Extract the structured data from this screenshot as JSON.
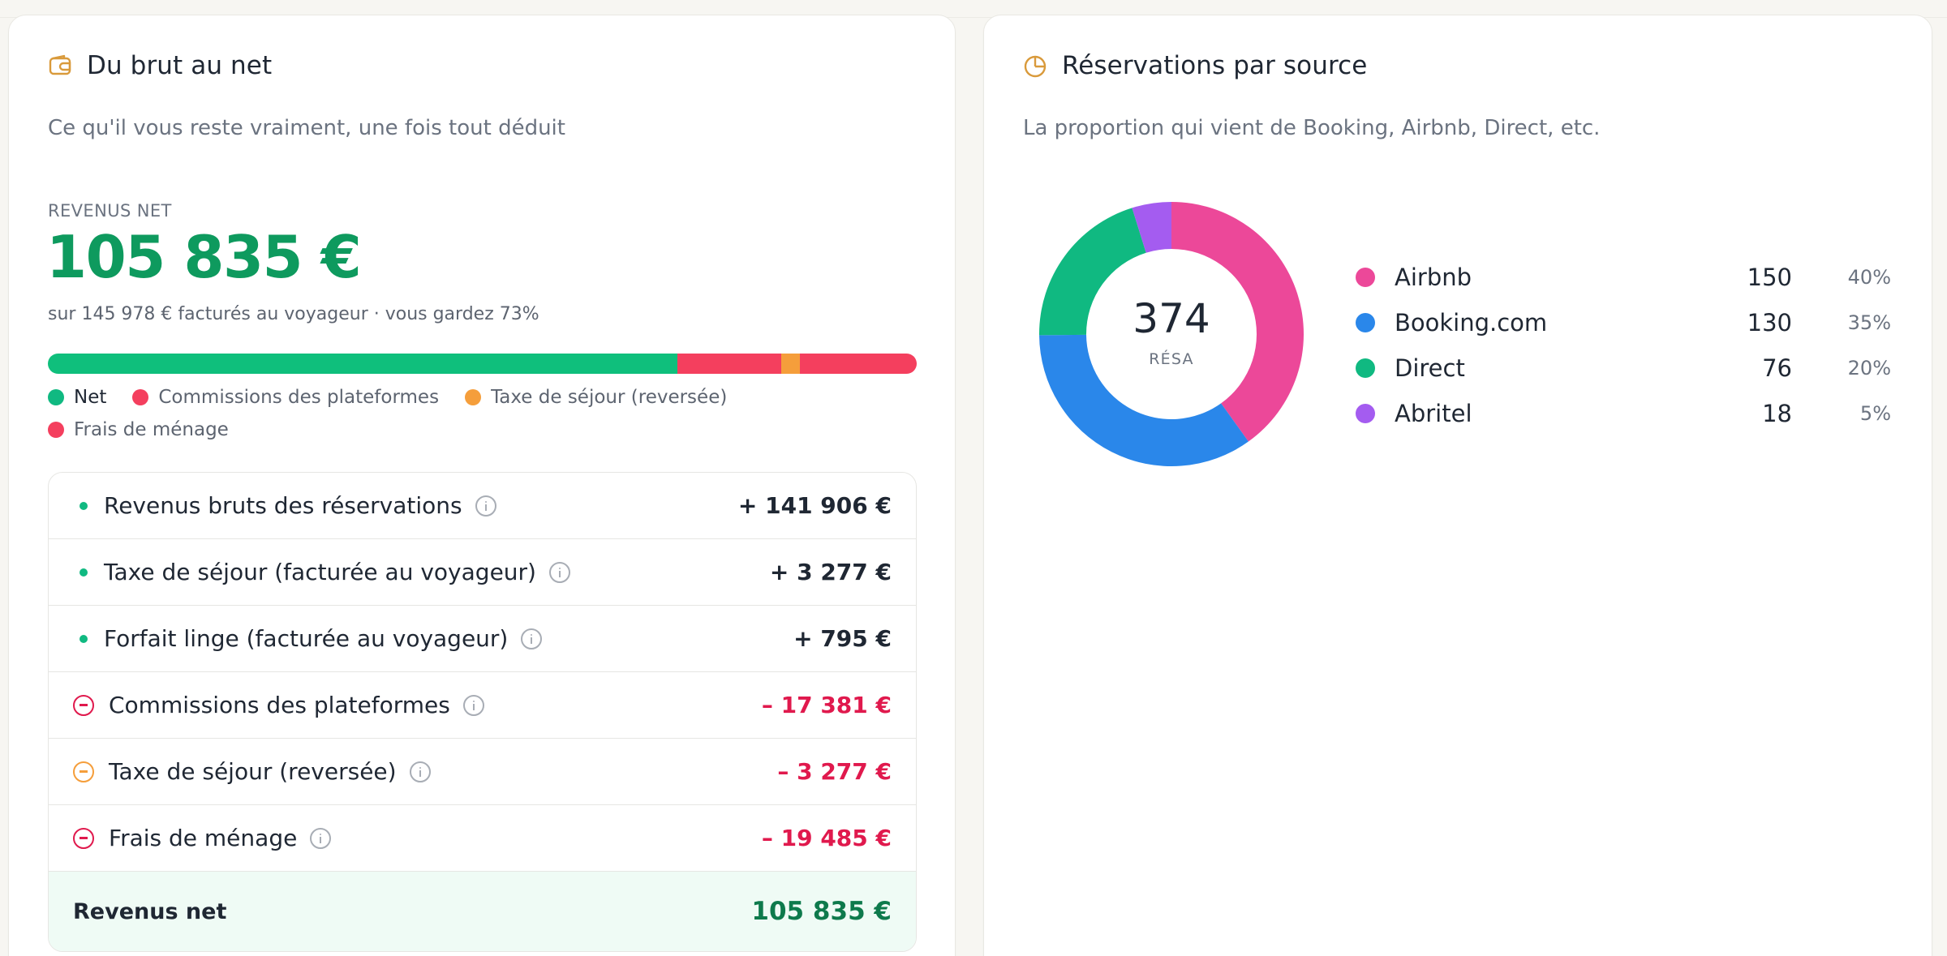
{
  "net_card": {
    "title": "Du brut au net",
    "subtitle": "Ce qu'il vous reste vraiment, une fois tout déduit",
    "net_label": "REVENUS NET",
    "net_amount": "105 835 €",
    "net_note": "sur 145 978 € facturés au voyageur · vous gardez 73%",
    "stack_bar": [
      {
        "name": "Net",
        "fraction": 0.725,
        "color": "#0fbf7c"
      },
      {
        "name": "Commissions des plateformes",
        "fraction": 0.119,
        "color": "#f43f5e"
      },
      {
        "name": "Taxe de séjour (reversée)",
        "fraction": 0.022,
        "color": "#f59e3b"
      },
      {
        "name": "Frais de ménage",
        "fraction": 0.134,
        "color": "#f43f5e"
      }
    ],
    "legend": [
      {
        "label": "Net",
        "color": "#10b981"
      },
      {
        "label": "Commissions des plateformes",
        "color": "#f43f5e"
      },
      {
        "label": "Taxe de séjour (reversée)",
        "color": "#f59e3b"
      },
      {
        "label": "Frais de ménage",
        "color": "#f43f5e"
      }
    ],
    "rows": [
      {
        "label": "Revenus bruts des réservations",
        "amount": "+ 141 906 €"
      },
      {
        "label": "Taxe de séjour (facturée au voyageur)",
        "amount": "+ 3 277 €"
      },
      {
        "label": "Forfait linge (facturée au voyageur)",
        "amount": "+ 795 €"
      },
      {
        "label": "Commissions des plateformes",
        "amount": "– 17 381 €",
        "color": "#e0194d"
      },
      {
        "label": "Taxe de séjour (reversée)",
        "amount": "– 3 277 €",
        "color": "#f59e3b"
      },
      {
        "label": "Frais de ménage",
        "amount": "– 19 485 €",
        "color": "#e0194d"
      }
    ],
    "total": {
      "label": "Revenus net",
      "amount": "105 835 €"
    }
  },
  "source_card": {
    "title": "Réservations par source",
    "subtitle": "La proportion qui vient de Booking, Airbnb, Direct, etc.",
    "donut": {
      "value": "374",
      "unit": "RÉSA"
    },
    "sources": [
      {
        "name": "Airbnb",
        "count": 150,
        "count_label": "150",
        "pct": "40%",
        "color": "#ec4899"
      },
      {
        "name": "Booking.com",
        "count": 130,
        "count_label": "130",
        "pct": "35%",
        "color": "#2a87ea"
      },
      {
        "name": "Direct",
        "count": 76,
        "count_label": "76",
        "pct": "20%",
        "color": "#10b981"
      },
      {
        "name": "Abritel",
        "count": 18,
        "count_label": "18",
        "pct": "5%",
        "color": "#a45cf0"
      }
    ]
  }
}
